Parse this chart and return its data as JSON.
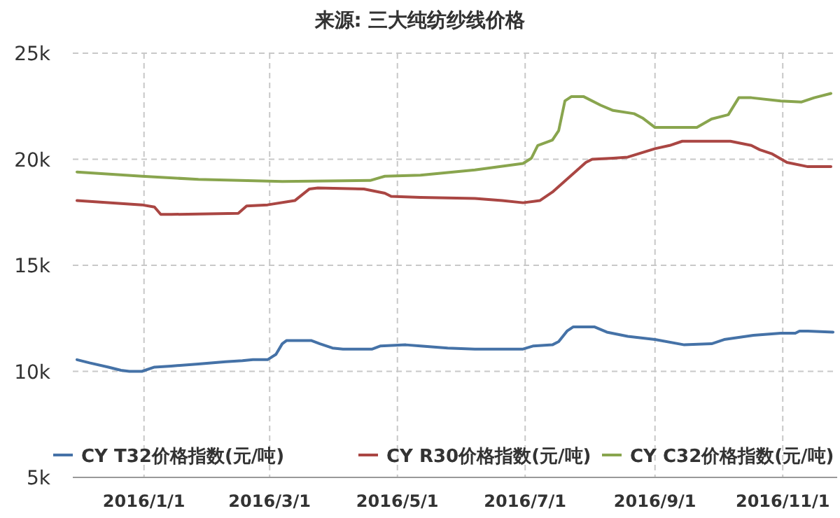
{
  "chart_data": {
    "type": "line",
    "title": "来源: 三大纯纺纱线价格",
    "grid": true,
    "legend": "bottom",
    "xlim": [
      "2015-11-28",
      "2016-11-27"
    ],
    "xticks": [
      {
        "value": "2016-01-01",
        "label": "2016/1/1"
      },
      {
        "value": "2016-03-01",
        "label": "2016/3/1"
      },
      {
        "value": "2016-05-01",
        "label": "2016/5/1"
      },
      {
        "value": "2016-07-01",
        "label": "2016/7/1"
      },
      {
        "value": "2016-09-01",
        "label": "2016/9/1"
      },
      {
        "value": "2016-11-01",
        "label": "2016/11/1"
      }
    ],
    "ylim": [
      5000,
      25000
    ],
    "yticks": [
      {
        "value": 5000,
        "label": "5k"
      },
      {
        "value": 10000,
        "label": "10k"
      },
      {
        "value": 15000,
        "label": "15k"
      },
      {
        "value": 20000,
        "label": "20k"
      },
      {
        "value": 25000,
        "label": "25k"
      }
    ],
    "series": [
      {
        "name": "CY T32价格指数(元/吨)",
        "color": "#4572a7",
        "x": [
          "2015-11-30",
          "2015-12-06",
          "2015-12-15",
          "2015-12-21",
          "2015-12-25",
          "2015-12-31",
          "2016-01-06",
          "2016-01-14",
          "2016-01-27",
          "2016-02-09",
          "2016-02-17",
          "2016-02-22",
          "2016-02-29",
          "2016-03-04",
          "2016-03-07",
          "2016-03-09",
          "2016-03-21",
          "2016-03-25",
          "2016-03-31",
          "2016-04-05",
          "2016-04-19",
          "2016-04-23",
          "2016-05-05",
          "2016-05-12",
          "2016-05-25",
          "2016-06-07",
          "2016-06-21",
          "2016-06-30",
          "2016-07-05",
          "2016-07-14",
          "2016-07-17",
          "2016-07-21",
          "2016-07-24",
          "2016-08-03",
          "2016-08-09",
          "2016-08-19",
          "2016-09-01",
          "2016-09-15",
          "2016-09-28",
          "2016-10-04",
          "2016-10-18",
          "2016-10-31",
          "2016-11-07",
          "2016-11-09",
          "2016-11-13",
          "2016-11-25"
        ],
        "values": [
          10550,
          10400,
          10200,
          10050,
          10000,
          10000,
          10200,
          10250,
          10350,
          10450,
          10500,
          10550,
          10550,
          10800,
          11300,
          11450,
          11450,
          11300,
          11100,
          11050,
          11050,
          11200,
          11250,
          11200,
          11100,
          11050,
          11050,
          11050,
          11200,
          11250,
          11400,
          11900,
          12100,
          12100,
          11850,
          11650,
          11500,
          11250,
          11300,
          11500,
          11700,
          11800,
          11800,
          11900,
          11900,
          11850
        ]
      },
      {
        "name": "CY R30价格指数(元/吨)",
        "color": "#aa4643",
        "x": [
          "2015-11-30",
          "2015-12-31",
          "2016-01-06",
          "2016-01-09",
          "2016-01-14",
          "2016-02-15",
          "2016-02-19",
          "2016-02-29",
          "2016-03-13",
          "2016-03-20",
          "2016-03-24",
          "2016-04-15",
          "2016-04-25",
          "2016-04-28",
          "2016-05-12",
          "2016-06-07",
          "2016-06-20",
          "2016-06-30",
          "2016-07-08",
          "2016-07-14",
          "2016-07-30",
          "2016-08-02",
          "2016-08-12",
          "2016-08-19",
          "2016-09-01",
          "2016-09-08",
          "2016-09-14",
          "2016-10-07",
          "2016-10-17",
          "2016-10-21",
          "2016-10-27",
          "2016-11-03",
          "2016-11-13",
          "2016-11-24"
        ],
        "values": [
          18050,
          17850,
          17750,
          17400,
          17400,
          17450,
          17800,
          17850,
          18050,
          18600,
          18650,
          18600,
          18400,
          18250,
          18200,
          18150,
          18050,
          17950,
          18050,
          18450,
          19850,
          20000,
          20050,
          20100,
          20500,
          20650,
          20850,
          20850,
          20650,
          20450,
          20250,
          19850,
          19650,
          19650
        ]
      },
      {
        "name": "CY C32价格指数(元/吨)",
        "color": "#89a54e",
        "x": [
          "2015-11-30",
          "2015-12-31",
          "2016-01-27",
          "2016-03-07",
          "2016-04-18",
          "2016-04-25",
          "2016-05-12",
          "2016-06-07",
          "2016-06-30",
          "2016-07-04",
          "2016-07-07",
          "2016-07-14",
          "2016-07-17",
          "2016-07-20",
          "2016-07-23",
          "2016-07-29",
          "2016-08-06",
          "2016-08-12",
          "2016-08-22",
          "2016-08-26",
          "2016-09-01",
          "2016-09-21",
          "2016-09-28",
          "2016-10-06",
          "2016-10-11",
          "2016-10-17",
          "2016-10-31",
          "2016-11-10",
          "2016-11-16",
          "2016-11-24"
        ],
        "values": [
          19400,
          19200,
          19050,
          18950,
          19000,
          19200,
          19250,
          19500,
          19800,
          20050,
          20650,
          20900,
          21350,
          22750,
          22950,
          22950,
          22550,
          22300,
          22150,
          21950,
          21500,
          21500,
          21900,
          22100,
          22900,
          22900,
          22750,
          22700,
          22900,
          23100
        ]
      }
    ]
  }
}
